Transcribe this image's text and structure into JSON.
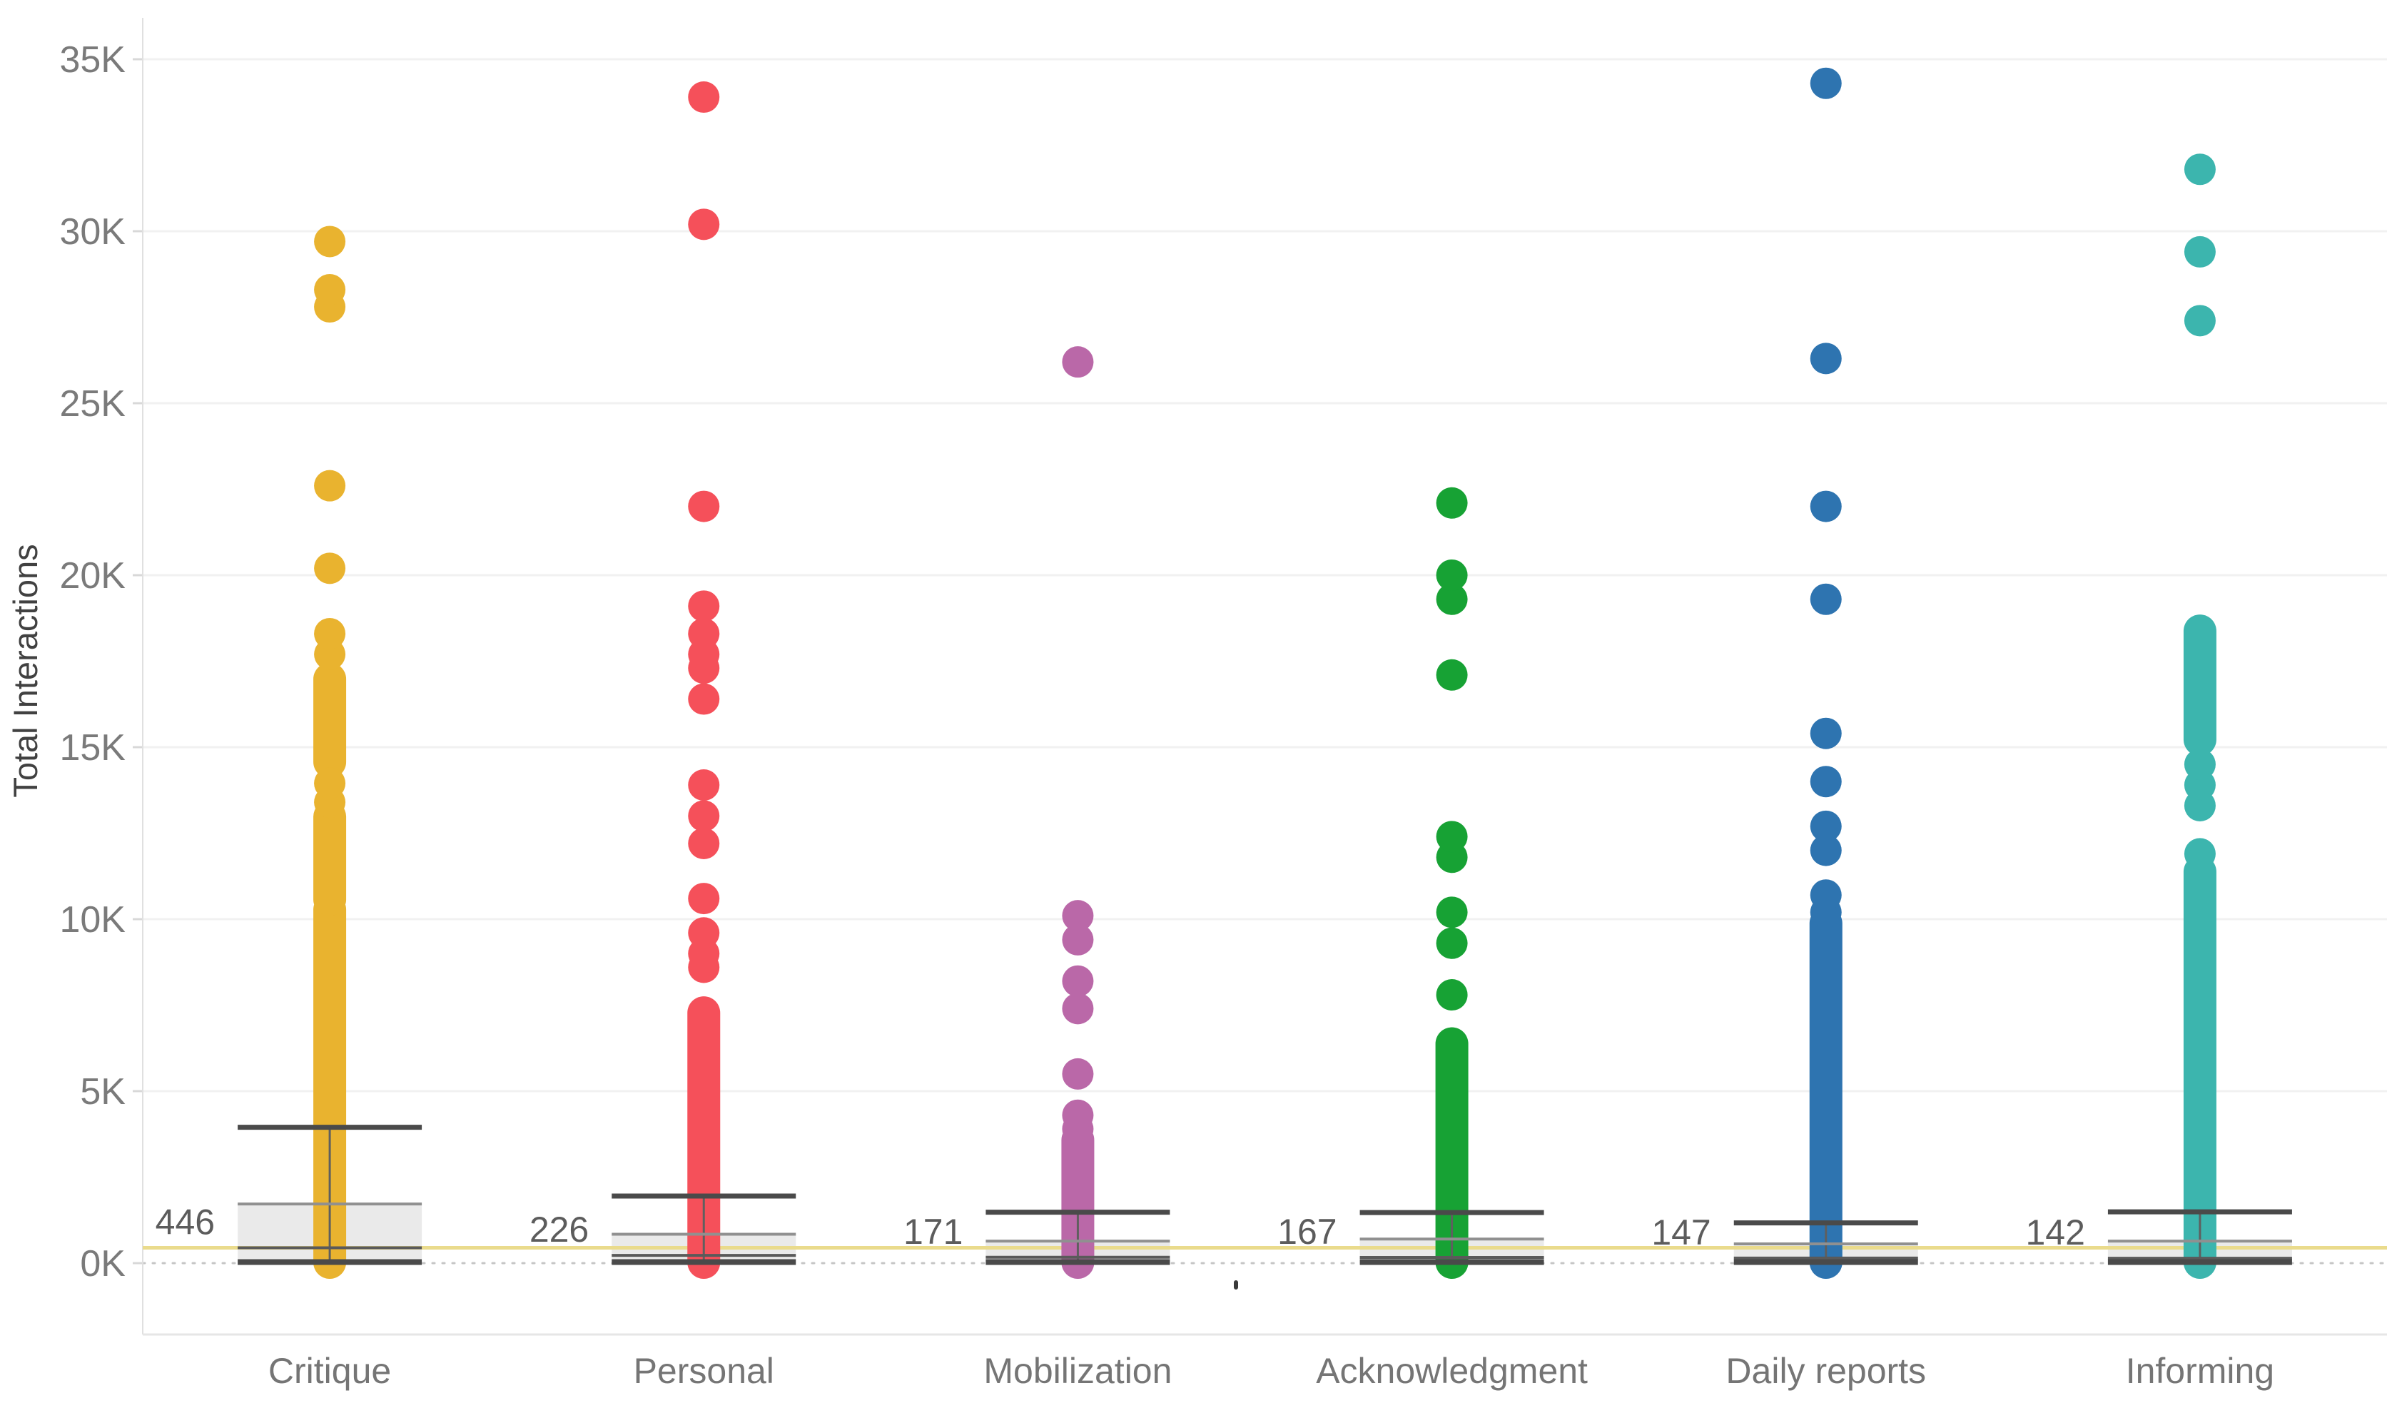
{
  "chart_data": {
    "type": "scatter",
    "variant": "strip-plot-with-box-plots",
    "title": "",
    "xlabel": "",
    "ylabel": "Total Interactions",
    "ylim": [
      0,
      36600
    ],
    "grid": true,
    "legend": "none",
    "y_ticks": [
      {
        "label": "0K",
        "value": 0,
        "style": "dotted"
      },
      {
        "label": "5K",
        "value": 5000,
        "style": "solid"
      },
      {
        "label": "10K",
        "value": 10000,
        "style": "solid"
      },
      {
        "label": "15K",
        "value": 15000,
        "style": "solid"
      },
      {
        "label": "20K",
        "value": 20000,
        "style": "solid"
      },
      {
        "label": "25K",
        "value": 25000,
        "style": "solid"
      },
      {
        "label": "30K",
        "value": 30000,
        "style": "solid"
      },
      {
        "label": "35K",
        "value": 35000,
        "style": "solid"
      }
    ],
    "reference_line": {
      "value": 446,
      "color": "#EADB8C"
    },
    "colors": {
      "gridline": "#F1F1F1",
      "zero_dotted_line": "#C6C6C6",
      "axis_line": "#E0E0E0",
      "box_fill": "#E8E8E8",
      "box_edge": "#909090",
      "whisker_line": "#4A4A4A",
      "median_line": "#5A5A5A"
    },
    "categories": [
      {
        "label": "Critique",
        "color": "#E9B32F",
        "median_label": "446",
        "box": {
          "whisker_top": 3950,
          "q3": 1720,
          "median": 446,
          "q1": 60,
          "whisker_bottom": 0
        },
        "solid_segments": [
          [
            0,
            10300
          ],
          [
            10550,
            13000
          ],
          [
            14550,
            17000
          ]
        ],
        "dots": [
          13400,
          13950,
          17700,
          18300,
          20200,
          22600,
          27800,
          28300,
          29700
        ]
      },
      {
        "label": "Personal",
        "color": "#F5505A",
        "median_label": "226",
        "box": {
          "whisker_top": 1950,
          "q3": 840,
          "median": 226,
          "q1": 40,
          "whisker_bottom": 0
        },
        "solid_segments": [
          [
            0,
            7300
          ]
        ],
        "dots": [
          8600,
          9000,
          9600,
          10600,
          12200,
          13000,
          13900,
          16400,
          17300,
          17700,
          18300,
          19100,
          22000,
          30200,
          33900
        ]
      },
      {
        "label": "Mobilization",
        "color": "#BA68A8",
        "median_label": "171",
        "box": {
          "whisker_top": 1480,
          "q3": 640,
          "median": 171,
          "q1": 30,
          "whisker_bottom": 0
        },
        "solid_segments": [
          [
            0,
            3600
          ]
        ],
        "dots": [
          3900,
          4300,
          5500,
          7400,
          8200,
          9400,
          10100,
          26200
        ]
      },
      {
        "label": "Acknowledgment",
        "color": "#17A234",
        "median_label": "167",
        "box": {
          "whisker_top": 1470,
          "q3": 700,
          "median": 167,
          "q1": 30,
          "whisker_bottom": 0
        },
        "solid_segments": [
          [
            0,
            6400
          ]
        ],
        "dots": [
          7800,
          9300,
          10200,
          11800,
          12400,
          17100,
          19300,
          20000,
          22100
        ]
      },
      {
        "label": "Daily reports",
        "color": "#2E74B0",
        "median_label": "147",
        "box": {
          "whisker_top": 1170,
          "q3": 560,
          "median": 147,
          "q1": 25,
          "whisker_bottom": 0
        },
        "solid_segments": [
          [
            0,
            9900
          ]
        ],
        "dots": [
          10200,
          10700,
          12000,
          12700,
          14000,
          15400,
          19300,
          22000,
          26300,
          34300
        ]
      },
      {
        "label": "Informing",
        "color": "#3CB5AE",
        "median_label": "142",
        "box": {
          "whisker_top": 1490,
          "q3": 640,
          "median": 142,
          "q1": 25,
          "whisker_bottom": 0
        },
        "solid_segments": [
          [
            0,
            11400
          ],
          [
            15200,
            18400
          ]
        ],
        "dots": [
          11900,
          13300,
          13900,
          14500,
          27400,
          29400,
          31800
        ]
      }
    ]
  }
}
